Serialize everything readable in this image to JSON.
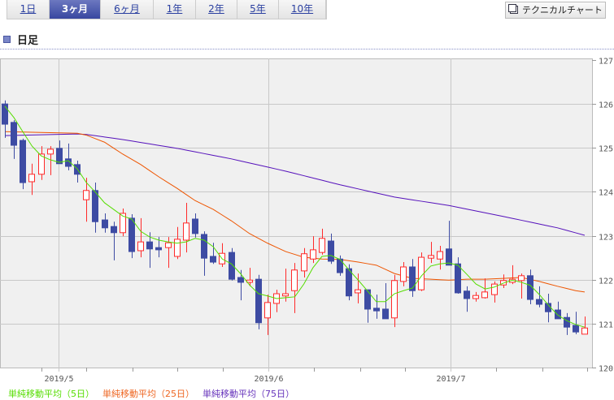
{
  "tabs": [
    {
      "label": "1日",
      "active": false
    },
    {
      "label": "3ヶ月",
      "active": true
    },
    {
      "label": "6ヶ月",
      "active": false
    },
    {
      "label": "1年",
      "active": false
    },
    {
      "label": "2年",
      "active": false
    },
    {
      "label": "5年",
      "active": false
    },
    {
      "label": "10年",
      "active": false
    }
  ],
  "technical_chart_label": "テクニカルチャート",
  "section_title": "日足",
  "colors": {
    "up": "#ff2a2a",
    "down": "#3d4ba3",
    "ma5": "#55dd00",
    "ma25": "#ee5500",
    "ma75": "#5511bb"
  },
  "chart_data": {
    "type": "candlestick",
    "ylim": [
      120,
      127
    ],
    "yticks": [
      "120",
      "121",
      "122",
      "123",
      "124",
      "125",
      "126",
      "127"
    ],
    "xticks": [
      {
        "label": "2019/5",
        "index": 6
      },
      {
        "label": "2019/6",
        "index": 29
      },
      {
        "label": "2019/7",
        "index": 49
      }
    ],
    "legend": [
      {
        "label": "単純移動平均（5日）",
        "series": "ma5"
      },
      {
        "label": "単純移動平均（25日）",
        "series": "ma25"
      },
      {
        "label": "単純移動平均（75日）",
        "series": "ma75"
      }
    ],
    "ohlc": [
      [
        126.0,
        126.08,
        125.23,
        125.54
      ],
      [
        125.58,
        125.63,
        124.75,
        125.06
      ],
      [
        125.17,
        125.21,
        124.06,
        124.21
      ],
      [
        124.23,
        124.64,
        123.93,
        124.4
      ],
      [
        124.4,
        125.04,
        124.27,
        124.86
      ],
      [
        124.86,
        125.04,
        124.38,
        124.97
      ],
      [
        124.99,
        125.17,
        124.64,
        124.64
      ],
      [
        124.75,
        125.1,
        124.49,
        124.58
      ],
      [
        124.62,
        124.71,
        124.21,
        124.4
      ],
      [
        123.82,
        124.32,
        123.32,
        124.03
      ],
      [
        124.03,
        124.21,
        123.07,
        123.32
      ],
      [
        123.36,
        123.51,
        123.07,
        123.18
      ],
      [
        123.21,
        123.32,
        122.44,
        123.07
      ],
      [
        123.07,
        123.62,
        122.99,
        123.51
      ],
      [
        123.4,
        123.49,
        122.49,
        122.64
      ],
      [
        122.66,
        123.4,
        122.51,
        122.86
      ],
      [
        122.86,
        123.08,
        122.27,
        122.7
      ],
      [
        122.73,
        122.97,
        122.51,
        122.68
      ],
      [
        122.73,
        122.97,
        122.27,
        122.84
      ],
      [
        122.53,
        123.2,
        122.47,
        122.92
      ],
      [
        122.9,
        123.75,
        122.62,
        123.29
      ],
      [
        123.38,
        123.51,
        122.96,
        123.05
      ],
      [
        123.03,
        123.1,
        122.09,
        122.49
      ],
      [
        122.53,
        122.84,
        122.36,
        122.4
      ],
      [
        122.36,
        122.83,
        122.29,
        122.6
      ],
      [
        122.62,
        122.72,
        121.98,
        122.01
      ],
      [
        122.05,
        122.22,
        121.53,
        121.94
      ],
      [
        121.94,
        122.27,
        121.85,
        121.99
      ],
      [
        122.01,
        122.11,
        120.87,
        121.02
      ],
      [
        121.13,
        121.66,
        120.74,
        121.48
      ],
      [
        121.46,
        121.77,
        121.26,
        121.68
      ],
      [
        121.63,
        122.25,
        121.5,
        121.68
      ],
      [
        121.75,
        122.38,
        121.24,
        122.22
      ],
      [
        122.2,
        122.72,
        122.05,
        122.59
      ],
      [
        122.47,
        122.99,
        122.38,
        122.68
      ],
      [
        122.62,
        123.16,
        122.57,
        122.94
      ],
      [
        122.88,
        123.05,
        122.36,
        122.42
      ],
      [
        122.47,
        122.55,
        122.09,
        122.16
      ],
      [
        122.25,
        122.35,
        121.53,
        121.63
      ],
      [
        121.7,
        122.14,
        121.46,
        121.77
      ],
      [
        121.77,
        121.77,
        121.02,
        121.33
      ],
      [
        121.35,
        121.66,
        121.11,
        121.29
      ],
      [
        121.33,
        121.92,
        121.11,
        121.11
      ],
      [
        121.13,
        122.11,
        120.92,
        121.98
      ],
      [
        121.96,
        122.4,
        121.85,
        122.29
      ],
      [
        122.29,
        122.47,
        121.61,
        121.75
      ],
      [
        121.77,
        122.62,
        121.74,
        122.51
      ],
      [
        122.49,
        122.86,
        122.38,
        122.55
      ],
      [
        122.47,
        122.77,
        122.23,
        122.64
      ],
      [
        122.7,
        123.34,
        122.33,
        122.33
      ],
      [
        122.36,
        122.51,
        121.68,
        121.7
      ],
      [
        121.74,
        121.85,
        121.27,
        121.57
      ],
      [
        121.57,
        121.72,
        121.5,
        121.64
      ],
      [
        121.59,
        122.03,
        121.57,
        121.72
      ],
      [
        121.66,
        121.96,
        121.48,
        121.9
      ],
      [
        121.88,
        122.12,
        121.81,
        121.98
      ],
      [
        121.94,
        122.33,
        121.9,
        122.01
      ],
      [
        121.98,
        122.14,
        121.57,
        122.09
      ],
      [
        122.09,
        122.23,
        121.44,
        121.55
      ],
      [
        121.55,
        121.85,
        121.37,
        121.44
      ],
      [
        121.46,
        121.68,
        121.03,
        121.27
      ],
      [
        121.31,
        121.5,
        121.11,
        121.11
      ],
      [
        121.14,
        121.24,
        120.74,
        120.92
      ],
      [
        120.96,
        121.27,
        120.76,
        120.81
      ],
      [
        120.76,
        121.16,
        120.76,
        120.9
      ]
    ],
    "ma5": [
      125.95,
      125.69,
      125.36,
      125.04,
      124.82,
      124.73,
      124.67,
      124.71,
      124.52,
      124.21,
      123.99,
      123.75,
      123.6,
      123.45,
      123.38,
      123.1,
      122.97,
      122.9,
      122.86,
      122.83,
      122.86,
      122.94,
      122.9,
      122.75,
      122.47,
      122.36,
      122.14,
      121.88,
      121.68,
      121.63,
      121.57,
      121.59,
      121.61,
      121.9,
      122.27,
      122.53,
      122.55,
      122.46,
      122.22,
      121.99,
      121.75,
      121.5,
      121.5,
      121.68,
      121.75,
      121.81,
      122.09,
      122.31,
      122.36,
      122.38,
      122.33,
      122.12,
      121.9,
      121.79,
      121.83,
      121.92,
      121.99,
      121.94,
      121.87,
      121.66,
      121.42,
      121.2,
      121.07,
      120.98,
      120.92
    ],
    "ma25_points": [
      [
        0,
        125.37
      ],
      [
        8.5,
        125.33
      ],
      [
        11,
        125.13
      ],
      [
        13,
        124.86
      ],
      [
        15,
        124.62
      ],
      [
        17,
        124.34
      ],
      [
        19,
        124.08
      ],
      [
        21,
        123.8
      ],
      [
        23,
        123.6
      ],
      [
        25,
        123.34
      ],
      [
        27,
        123.05
      ],
      [
        29,
        122.83
      ],
      [
        31,
        122.64
      ],
      [
        33,
        122.51
      ],
      [
        35,
        122.47
      ],
      [
        37,
        122.46
      ],
      [
        39,
        122.4
      ],
      [
        41,
        122.33
      ],
      [
        43,
        122.14
      ],
      [
        45,
        122.03
      ],
      [
        47,
        122.01
      ],
      [
        49,
        121.99
      ],
      [
        51,
        122.01
      ],
      [
        53,
        122.01
      ],
      [
        55,
        122.03
      ],
      [
        57,
        122.05
      ],
      [
        59,
        121.96
      ],
      [
        61,
        121.85
      ],
      [
        63,
        121.75
      ],
      [
        64,
        121.72
      ]
    ],
    "ma75_points": [
      [
        0,
        125.28
      ],
      [
        8.5,
        125.32
      ],
      [
        13,
        125.19
      ],
      [
        19,
        124.99
      ],
      [
        25,
        124.75
      ],
      [
        31,
        124.47
      ],
      [
        37,
        124.16
      ],
      [
        43,
        123.88
      ],
      [
        49,
        123.69
      ],
      [
        55,
        123.44
      ],
      [
        61,
        123.18
      ],
      [
        64,
        123.01
      ]
    ]
  }
}
